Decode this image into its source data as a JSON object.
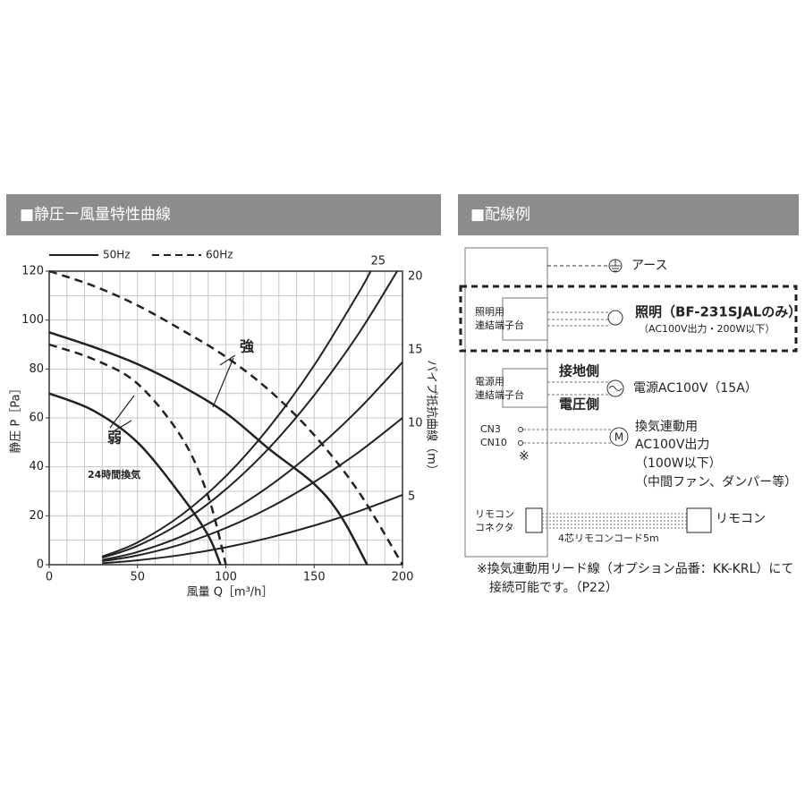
{
  "chart_data": {
    "type": "line",
    "title": "■静圧ー風量特性曲線",
    "x_label": "風量 Q［m³/h］",
    "y_label": "静圧 P［Pa］",
    "y2_label": "パイプ抵抗曲線（m）",
    "xlim": [
      0,
      200
    ],
    "xticks": [
      0,
      50,
      100,
      150,
      200
    ],
    "ylim": [
      0,
      120
    ],
    "yticks": [
      0,
      20,
      40,
      60,
      80,
      100,
      120
    ],
    "y2lim": [
      0,
      20
    ],
    "y2ticks": [
      5,
      10,
      15,
      20
    ],
    "grid": true,
    "minor_grid_step": 10,
    "color": "#222222",
    "legend": [
      {
        "label": "50Hz",
        "dash": "solid"
      },
      {
        "label": "60Hz",
        "dash": "dashed"
      }
    ],
    "series": [
      {
        "dash": "dashed",
        "x": [
          0,
          25,
          50,
          75,
          100,
          125,
          150,
          175,
          200
        ],
        "values": [
          120,
          114,
          106,
          96,
          85,
          71,
          53,
          30,
          0
        ]
      },
      {
        "dash": "solid",
        "x": [
          0,
          25,
          50,
          75,
          100,
          125,
          150,
          165,
          180
        ],
        "values": [
          95,
          89,
          82,
          73,
          62,
          47,
          33,
          20,
          0
        ]
      },
      {
        "dash": "dashed",
        "x": [
          0,
          25,
          50,
          75,
          90,
          100
        ],
        "values": [
          90,
          84,
          74,
          52,
          28,
          0
        ]
      },
      {
        "dash": "solid",
        "x": [
          0,
          25,
          50,
          75,
          90,
          97
        ],
        "values": [
          70,
          63,
          50,
          28,
          12,
          0
        ]
      },
      {
        "dash": "solid",
        "thin": true,
        "x": [
          30,
          50,
          75,
          100,
          125,
          150,
          175,
          200
        ],
        "values": [
          0.6,
          1.8,
          4,
          7.1,
          11.1,
          16,
          21.8,
          28.5
        ]
      },
      {
        "dash": "solid",
        "thin": true,
        "x": [
          30,
          50,
          75,
          100,
          125,
          150,
          175,
          200
        ],
        "values": [
          1.4,
          3.8,
          8.4,
          15,
          23.4,
          33.8,
          45.9,
          60
        ]
      },
      {
        "dash": "solid",
        "thin": true,
        "x": [
          30,
          50,
          75,
          100,
          125,
          150,
          175,
          200
        ],
        "values": [
          1.9,
          5.2,
          11.6,
          20.7,
          32.3,
          46.6,
          63.4,
          82.8
        ]
      },
      {
        "dash": "solid",
        "thin": true,
        "x": [
          30,
          50,
          75,
          100,
          125,
          150,
          175,
          197
        ],
        "values": [
          2.8,
          7.7,
          17.3,
          30.8,
          48.1,
          69.3,
          94.3,
          120
        ]
      },
      {
        "dash": "solid",
        "thin": true,
        "label": "25",
        "x": [
          30,
          50,
          75,
          100,
          125,
          150,
          175,
          182
        ],
        "values": [
          3.3,
          9.1,
          20.4,
          36.2,
          56.6,
          81.5,
          110.9,
          120
        ]
      }
    ],
    "annotations": [
      {
        "text": "強"
      },
      {
        "text": "弱"
      },
      {
        "text": "24時間換気"
      }
    ]
  },
  "wiring": {
    "title": "■配線例",
    "earth": "アース",
    "light_terminal": [
      "照明用",
      "連結端子台"
    ],
    "light": "照明（BF-231SJALのみ）",
    "light_sub": "（AC100V出力・200W以下）",
    "power_terminal": [
      "電源用",
      "連結端子台"
    ],
    "ground_side": "接地側",
    "voltage_side": "電圧側",
    "power": "電源AC100V（15A）",
    "cn3": "CN3",
    "cn10": "CN10",
    "mark": "※",
    "vent": [
      "換気連動用",
      "AC100V出力",
      "（100W以下）",
      "（中間ファン、ダンパー等）"
    ],
    "remote_connector": [
      "リモコン",
      "コネクタ"
    ],
    "cord": "4芯リモコンコード5m",
    "remote": "リモコン",
    "note": [
      "※換気連動用リード線（オプション品番：KK-KRL）にて",
      "接続可能です。（P22）"
    ]
  }
}
